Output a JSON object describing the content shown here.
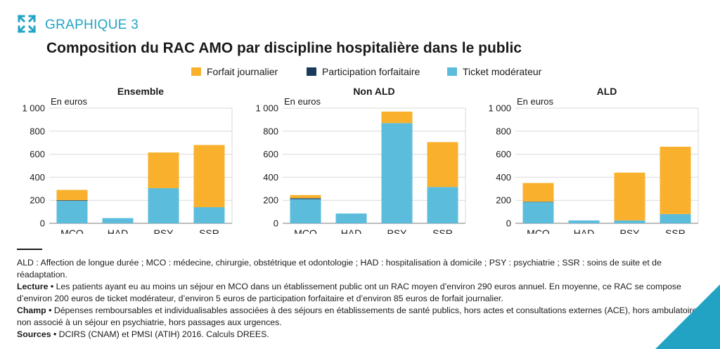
{
  "header": {
    "kicker": "GRAPHIQUE 3",
    "title": "Composition du RAC AMO par discipline hospitalière dans le public",
    "expand_icon": "expand-arrows-icon"
  },
  "colors": {
    "forfait_journalier": "#f9b12d",
    "participation_forfaitaire": "#1a3a5c",
    "ticket_moderateur": "#5bbcdc",
    "accent": "#22a3c4",
    "axis": "#7a7a7a",
    "grid": "#d9d9d9"
  },
  "legend": [
    {
      "name": "Forfait journalier",
      "color": "#f9b12d"
    },
    {
      "name": "Participation forfaitaire",
      "color": "#1a3a5c"
    },
    {
      "name": "Ticket modérateur",
      "color": "#5bbcdc"
    }
  ],
  "chart_data": [
    {
      "type": "bar",
      "stacked": true,
      "title": "Ensemble",
      "ylabel": "En euros",
      "categories": [
        "MCO",
        "HAD",
        "PSY",
        "SSR"
      ],
      "ylim": [
        0,
        1000
      ],
      "yticks": [
        "0",
        "200",
        "400",
        "600",
        "800",
        "1 000"
      ],
      "grid": true,
      "series": [
        {
          "name": "Ticket modérateur",
          "values": [
            195,
            45,
            305,
            140
          ]
        },
        {
          "name": "Participation forfaitaire",
          "values": [
            5,
            0,
            0,
            0
          ]
        },
        {
          "name": "Forfait journalier",
          "values": [
            90,
            0,
            310,
            540
          ]
        }
      ]
    },
    {
      "type": "bar",
      "stacked": true,
      "title": "Non ALD",
      "ylabel": "En euros",
      "categories": [
        "MCO",
        "HAD",
        "PSY",
        "SSR"
      ],
      "ylim": [
        0,
        1000
      ],
      "yticks": [
        "0",
        "200",
        "400",
        "600",
        "800",
        "1 000"
      ],
      "grid": true,
      "series": [
        {
          "name": "Ticket modérateur",
          "values": [
            210,
            85,
            870,
            315
          ]
        },
        {
          "name": "Participation forfaitaire",
          "values": [
            8,
            0,
            0,
            0
          ]
        },
        {
          "name": "Forfait journalier",
          "values": [
            27,
            0,
            100,
            390
          ]
        }
      ]
    },
    {
      "type": "bar",
      "stacked": true,
      "title": "ALD",
      "ylabel": "En euros",
      "categories": [
        "MCO",
        "HAD",
        "PSY",
        "SSR"
      ],
      "ylim": [
        0,
        1000
      ],
      "yticks": [
        "0",
        "200",
        "400",
        "600",
        "800",
        "1 000"
      ],
      "grid": true,
      "series": [
        {
          "name": "Ticket modérateur",
          "values": [
            185,
            25,
            25,
            80
          ]
        },
        {
          "name": "Participation forfaitaire",
          "values": [
            3,
            0,
            0,
            0
          ]
        },
        {
          "name": "Forfait journalier",
          "values": [
            162,
            0,
            415,
            585
          ]
        }
      ]
    }
  ],
  "notes": {
    "definitions": "ALD : Affection de longue durée ; MCO : médecine, chirurgie, obstétrique et odontologie ; HAD : hospitalisation à domicile ; PSY : psychiatrie ; SSR : soins de suite et de réadaptation.",
    "lecture_label": "Lecture •",
    "lecture_text": " Les patients ayant eu au moins un séjour en MCO dans un établissement public ont un RAC moyen d’environ 290 euros annuel. En moyenne, ce RAC se compose d’environ 200 euros de ticket modérateur, d’environ 5 euros de participation forfaitaire et d’environ 85 euros de forfait journalier.",
    "champ_label": "Champ •",
    "champ_text": " Dépenses remboursables et individualisables associées à des séjours en établissements de santé publics, hors actes et consultations externes (ACE), hors ambulatoire non associé à un séjour en psychiatrie, hors passages aux urgences.",
    "sources_label": "Sources •",
    "sources_text": " DCIRS (CNAM) et PMSI (ATIH) 2016. Calculs DREES."
  }
}
